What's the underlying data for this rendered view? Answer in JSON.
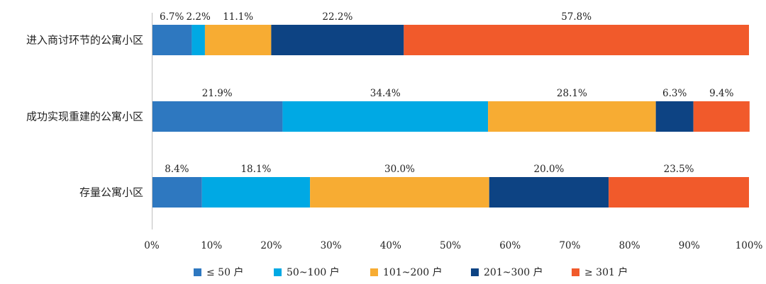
{
  "chart_data": {
    "type": "bar",
    "orientation": "horizontal",
    "stacked": true,
    "percent": true,
    "title": "",
    "xlabel": "",
    "ylabel": "",
    "xlim": [
      0,
      100
    ],
    "grid": false,
    "legend_position": "bottom",
    "categories": [
      "进入商讨环节的公寓小区",
      "成功实现重建的公寓小区",
      "存量公寓小区"
    ],
    "x_ticks": [
      "0%",
      "10%",
      "20%",
      "30%",
      "40%",
      "50%",
      "60%",
      "70%",
      "80%",
      "90%",
      "100%"
    ],
    "series": [
      {
        "name": "≤ 50 户",
        "color": "#2E78C0",
        "values": [
          6.7,
          21.9,
          8.4
        ],
        "labels": [
          "6.7%",
          "21.9%",
          "8.4%"
        ]
      },
      {
        "name": "50~100 户",
        "color": "#00A9E4",
        "values": [
          2.2,
          34.4,
          18.1
        ],
        "labels": [
          "2.2%",
          "34.4%",
          "18.1%"
        ]
      },
      {
        "name": "101~200 户",
        "color": "#F7AC33",
        "values": [
          11.1,
          28.1,
          30.0
        ],
        "labels": [
          "11.1%",
          "28.1%",
          "30.0%"
        ]
      },
      {
        "name": "201~300 户",
        "color": "#0D4383",
        "values": [
          22.2,
          6.3,
          20.0
        ],
        "labels": [
          "22.2%",
          "6.3%",
          "20.0%"
        ]
      },
      {
        "name": "≥ 301 户",
        "color": "#F15A2B",
        "values": [
          57.8,
          9.4,
          23.5
        ],
        "labels": [
          "57.8%",
          "9.4%",
          "23.5%"
        ]
      }
    ]
  }
}
